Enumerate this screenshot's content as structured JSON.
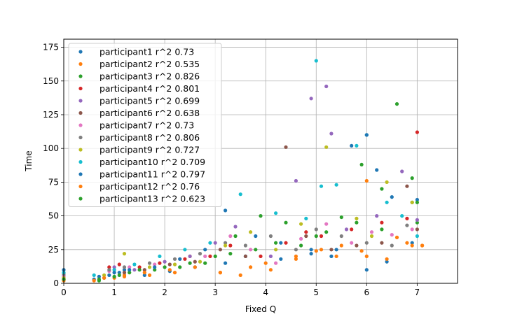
{
  "chart_data": {
    "type": "scatter",
    "title": "",
    "xlabel": "Fixed Q",
    "ylabel": "Time",
    "xlim": [
      0,
      7.8
    ],
    "ylim": [
      0,
      181
    ],
    "xticks": [
      0,
      1,
      2,
      3,
      4,
      5,
      6,
      7
    ],
    "yticks": [
      0,
      25,
      50,
      75,
      100,
      125,
      150,
      175
    ],
    "grid": true,
    "legend_position": "upper-left",
    "series": [
      {
        "name": "participant1 r^2 0.73",
        "color": "#1f77b4",
        "points": [
          [
            0,
            5
          ],
          [
            0.6,
            3
          ],
          [
            0.9,
            6
          ],
          [
            1.1,
            8
          ],
          [
            1.2,
            10
          ],
          [
            1.6,
            6
          ],
          [
            2.1,
            9
          ],
          [
            2.6,
            12
          ],
          [
            3.2,
            15
          ],
          [
            3.6,
            20
          ],
          [
            4.3,
            18
          ],
          [
            4.9,
            22
          ],
          [
            5.4,
            25
          ],
          [
            6.0,
            10
          ],
          [
            6.4,
            16
          ],
          [
            6.9,
            30
          ]
        ]
      },
      {
        "name": "participant2 r^2 0.535",
        "color": "#ff7f0e",
        "points": [
          [
            0,
            3
          ],
          [
            0.6,
            2
          ],
          [
            1.0,
            4
          ],
          [
            1.2,
            6
          ],
          [
            1.7,
            6
          ],
          [
            2.2,
            8
          ],
          [
            2.5,
            20
          ],
          [
            3.1,
            8
          ],
          [
            3.7,
            12
          ],
          [
            4.1,
            10
          ],
          [
            4.6,
            18
          ],
          [
            5.0,
            24
          ],
          [
            5.4,
            20
          ],
          [
            5.9,
            24
          ],
          [
            6.0,
            76
          ],
          [
            6.4,
            18
          ],
          [
            6.8,
            30
          ],
          [
            7.1,
            28
          ]
        ]
      },
      {
        "name": "participant3 r^2 0.826",
        "color": "#2ca02c",
        "points": [
          [
            0,
            2
          ],
          [
            0.7,
            2
          ],
          [
            1.0,
            5
          ],
          [
            1.3,
            8
          ],
          [
            1.8,
            10
          ],
          [
            2.3,
            12
          ],
          [
            2.8,
            15
          ],
          [
            3.3,
            22
          ],
          [
            3.8,
            25
          ],
          [
            4.2,
            30
          ],
          [
            4.7,
            28
          ],
          [
            5.2,
            38
          ],
          [
            5.8,
            45
          ],
          [
            6.3,
            40
          ],
          [
            6.9,
            60
          ],
          [
            7.0,
            45
          ]
        ]
      },
      {
        "name": "participant4 r^2 0.801",
        "color": "#d62728",
        "points": [
          [
            0,
            4
          ],
          [
            0.9,
            12
          ],
          [
            1.1,
            14
          ],
          [
            1.5,
            12
          ],
          [
            1.9,
            15
          ],
          [
            2.4,
            18
          ],
          [
            2.9,
            20
          ],
          [
            3.3,
            28
          ],
          [
            3.9,
            20
          ],
          [
            4.4,
            30
          ],
          [
            4.8,
            38
          ],
          [
            5.1,
            35
          ],
          [
            5.7,
            40
          ],
          [
            6.3,
            45
          ],
          [
            6.8,
            48
          ],
          [
            7.0,
            112
          ]
        ]
      },
      {
        "name": "participant5 r^2 0.699",
        "color": "#9467bd",
        "points": [
          [
            0,
            6
          ],
          [
            1.0,
            12
          ],
          [
            1.4,
            10
          ],
          [
            2.0,
            16
          ],
          [
            2.5,
            20
          ],
          [
            3.0,
            30
          ],
          [
            3.4,
            42
          ],
          [
            4.1,
            20
          ],
          [
            4.6,
            76
          ],
          [
            4.9,
            137
          ],
          [
            5.2,
            146
          ],
          [
            5.3,
            111
          ],
          [
            5.6,
            40
          ],
          [
            6.2,
            50
          ],
          [
            6.7,
            83
          ],
          [
            7.0,
            47
          ]
        ]
      },
      {
        "name": "participant6 r^2 0.638",
        "color": "#8c564b",
        "points": [
          [
            0,
            3
          ],
          [
            0.8,
            4
          ],
          [
            1.2,
            8
          ],
          [
            1.6,
            10
          ],
          [
            2.1,
            14
          ],
          [
            2.6,
            16
          ],
          [
            3.1,
            25
          ],
          [
            3.6,
            20
          ],
          [
            4.4,
            101
          ],
          [
            4.8,
            35
          ],
          [
            5.3,
            25
          ],
          [
            5.8,
            28
          ],
          [
            6.3,
            30
          ],
          [
            6.8,
            72
          ],
          [
            7.0,
            40
          ]
        ]
      },
      {
        "name": "participant7 r^2 0.73",
        "color": "#e377c2",
        "points": [
          [
            0,
            5
          ],
          [
            0.9,
            9
          ],
          [
            1.3,
            12
          ],
          [
            1.8,
            14
          ],
          [
            2.3,
            18
          ],
          [
            2.8,
            20
          ],
          [
            3.3,
            35
          ],
          [
            3.7,
            25
          ],
          [
            4.2,
            15
          ],
          [
            4.7,
            33
          ],
          [
            5.2,
            44
          ],
          [
            5.7,
            30
          ],
          [
            6.1,
            38
          ],
          [
            6.5,
            36
          ],
          [
            6.9,
            40
          ]
        ]
      },
      {
        "name": "participant8 r^2 0.806",
        "color": "#7f7f7f",
        "points": [
          [
            0,
            7
          ],
          [
            0.9,
            10
          ],
          [
            1.2,
            12
          ],
          [
            1.7,
            15
          ],
          [
            2.2,
            18
          ],
          [
            2.7,
            22
          ],
          [
            3.2,
            30
          ],
          [
            3.6,
            28
          ],
          [
            4.1,
            35
          ],
          [
            4.6,
            25
          ],
          [
            5.0,
            40
          ],
          [
            5.5,
            35
          ],
          [
            6.0,
            30
          ],
          [
            6.5,
            28
          ],
          [
            6.8,
            43
          ]
        ]
      },
      {
        "name": "participant9 r^2 0.727",
        "color": "#bcbd22",
        "points": [
          [
            0,
            4
          ],
          [
            0.8,
            6
          ],
          [
            1.2,
            22
          ],
          [
            1.7,
            12
          ],
          [
            2.2,
            14
          ],
          [
            2.7,
            16
          ],
          [
            3.2,
            28
          ],
          [
            3.7,
            38
          ],
          [
            4.2,
            25
          ],
          [
            4.7,
            44
          ],
          [
            5.2,
            101
          ],
          [
            5.8,
            48
          ],
          [
            6.1,
            35
          ],
          [
            6.4,
            75
          ],
          [
            6.9,
            60
          ]
        ]
      },
      {
        "name": "participant10 r^2 0.709",
        "color": "#17becf",
        "points": [
          [
            0,
            8
          ],
          [
            0.6,
            6
          ],
          [
            1.0,
            10
          ],
          [
            1.4,
            14
          ],
          [
            1.9,
            20
          ],
          [
            2.4,
            25
          ],
          [
            2.9,
            30
          ],
          [
            3.5,
            66
          ],
          [
            4.2,
            52
          ],
          [
            4.8,
            48
          ],
          [
            5.0,
            165
          ],
          [
            5.1,
            72
          ],
          [
            5.4,
            73
          ],
          [
            5.8,
            102
          ],
          [
            6.0,
            110
          ],
          [
            6.4,
            60
          ],
          [
            6.7,
            50
          ],
          [
            7.0,
            35
          ]
        ]
      },
      {
        "name": "participant11 r^2 0.797",
        "color": "#1f77b4",
        "points": [
          [
            0,
            10
          ],
          [
            0.7,
            5
          ],
          [
            1.0,
            8
          ],
          [
            1.3,
            10
          ],
          [
            1.8,
            12
          ],
          [
            2.3,
            18
          ],
          [
            2.8,
            25
          ],
          [
            3.2,
            54
          ],
          [
            3.8,
            35
          ],
          [
            4.3,
            30
          ],
          [
            4.9,
            25
          ],
          [
            5.3,
            20
          ],
          [
            5.7,
            102
          ],
          [
            6.0,
            110
          ],
          [
            6.2,
            84
          ],
          [
            6.5,
            64
          ],
          [
            7.0,
            62
          ]
        ]
      },
      {
        "name": "participant12 r^2 0.76",
        "color": "#ff7f0e",
        "points": [
          [
            0,
            2
          ],
          [
            0.8,
            4
          ],
          [
            1.2,
            5
          ],
          [
            1.6,
            8
          ],
          [
            2.1,
            10
          ],
          [
            2.6,
            12
          ],
          [
            3.1,
            8
          ],
          [
            3.5,
            6
          ],
          [
            4.0,
            15
          ],
          [
            4.6,
            20
          ],
          [
            5.1,
            25
          ],
          [
            5.5,
            28
          ],
          [
            6.0,
            20
          ],
          [
            6.6,
            34
          ],
          [
            6.9,
            28
          ],
          [
            7.1,
            28
          ]
        ]
      },
      {
        "name": "participant13 r^2 0.623",
        "color": "#2ca02c",
        "points": [
          [
            0,
            3
          ],
          [
            0.7,
            3
          ],
          [
            1.1,
            6
          ],
          [
            1.5,
            10
          ],
          [
            2.0,
            12
          ],
          [
            2.5,
            15
          ],
          [
            3.0,
            20
          ],
          [
            3.4,
            35
          ],
          [
            3.9,
            50
          ],
          [
            4.4,
            45
          ],
          [
            5.0,
            35
          ],
          [
            5.5,
            49
          ],
          [
            5.9,
            88
          ],
          [
            6.3,
            70
          ],
          [
            6.6,
            133
          ],
          [
            6.9,
            78
          ],
          [
            7.0,
            60
          ]
        ]
      }
    ]
  }
}
